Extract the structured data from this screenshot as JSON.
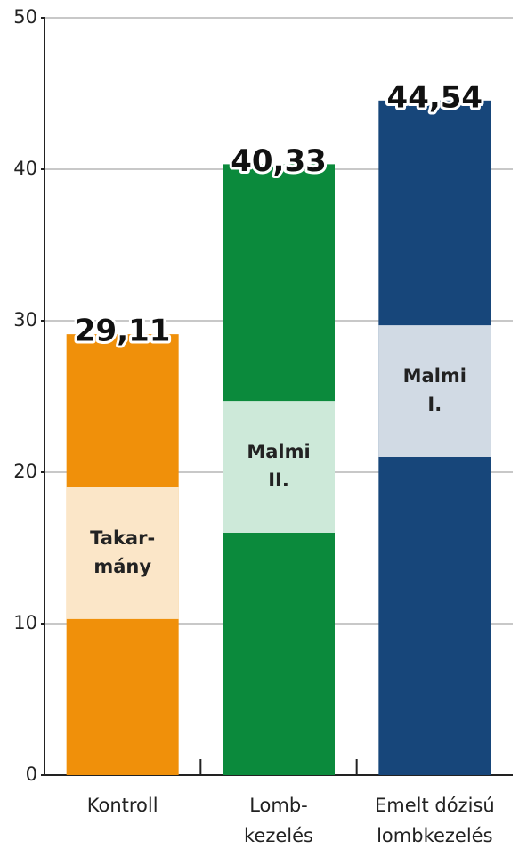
{
  "chart_data": {
    "type": "bar",
    "categories": [
      [
        "Kontroll"
      ],
      [
        "Lomb-",
        "kezelés"
      ],
      [
        "Emelt dózisú",
        "lombkezelés"
      ]
    ],
    "values": [
      29.11,
      40.33,
      44.54
    ],
    "value_labels": [
      "29,11",
      "40,33",
      "44,54"
    ],
    "colors": [
      "#f0900a",
      "#0b8a3c",
      "#17467a"
    ],
    "bands": [
      {
        "label": [
          "Takar-",
          "mány"
        ],
        "from": 10.3,
        "to": 19,
        "color": "#fbe6c8"
      },
      {
        "label": [
          "Malmi",
          "II."
        ],
        "from": 16,
        "to": 24.7,
        "color": "#cde9d9"
      },
      {
        "label": [
          "Malmi",
          "I."
        ],
        "from": 21,
        "to": 29.7,
        "color": "#d1dae4"
      }
    ],
    "ylim": [
      0,
      50
    ],
    "yticks": [
      0,
      10,
      20,
      30,
      40,
      50
    ],
    "grid": true
  }
}
